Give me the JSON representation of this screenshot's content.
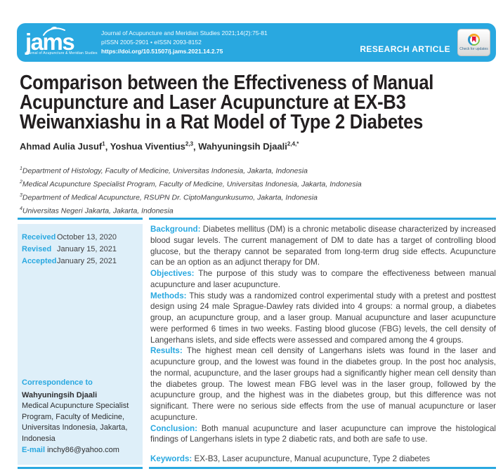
{
  "header": {
    "logo_name": "jams",
    "logo_tagline": "Journal of Acupuncture & Meridian Studies",
    "citation": "Journal of Acupuncture and Meridian Studies 2021;14(2):75-81",
    "issn": "pISSN 2005-2901 • eISSN 2093-8152",
    "doi": "https://doi.org/10.51507/j.jams.2021.14.2.75",
    "article_type": "RESEARCH ARTICLE",
    "crossmark_label": "Check for updates"
  },
  "article": {
    "title_lines": [
      "Comparison between the Effectiveness of Manual",
      "Acupuncture and Laser Acupuncture at EX-B3",
      "Weiwanxiashu in a Rat Model of Type 2 Diabetes"
    ],
    "authors": [
      {
        "name": "Ahmad Aulia Jusuf",
        "sup": "1"
      },
      {
        "name": "Yoshua Viventius",
        "sup": "2,3"
      },
      {
        "name": "Wahyuningsih Djaali",
        "sup": "2,4,*"
      }
    ],
    "affiliations": [
      {
        "sup": "1",
        "text": "Department of Histology, Faculty of Medicine, Universitas Indonesia, Jakarta, Indonesia"
      },
      {
        "sup": "2",
        "text": "Medical Acupuncture Specialist Program, Faculty of Medicine, Universitas Indonesia, Jakarta, Indonesia"
      },
      {
        "sup": "3",
        "text": "Department of Medical Acupuncture, RSUPN Dr. CiptoMangunkusumo, Jakarta, Indonesia"
      },
      {
        "sup": "4",
        "text": "Universitas Negeri Jakarta, Jakarta, Indonesia"
      }
    ]
  },
  "sidebar": {
    "history": [
      {
        "label": "Received",
        "value": "October 13, 2020"
      },
      {
        "label": "Revised",
        "value": "January 15, 2021"
      },
      {
        "label": "Accepted",
        "value": "January 25, 2021"
      }
    ],
    "correspondence": {
      "heading": "Correspondence to",
      "name": "Wahyuningsih Djaali",
      "address": "Medical Acupuncture Specialist Program, Faculty of Medicine, Universitas Indonesia, Jakarta, Indonesia",
      "email_label": "E-mail",
      "email": "inchy86@yahoo.com"
    }
  },
  "abstract": {
    "sections": [
      {
        "label": "Background:",
        "text": "Diabetes mellitus (DM) is a chronic metabolic disease characterized by increased blood sugar levels. The current management of DM to date has a target of controlling blood glucose, but the therapy cannot be separated from long-term drug side effects. Acupuncture can be an option as an adjunct therapy for DM."
      },
      {
        "label": "Objectives:",
        "text": "The purpose of this study was to compare the effectiveness between manual acupuncture and laser acupuncture."
      },
      {
        "label": "Methods:",
        "text": "This study was a randomized control experimental study with a pretest and posttest design using 24 male Sprague-Dawley rats divided into 4 groups: a normal group, a diabetes group, an acupuncture group, and a laser group. Manual acupuncture and laser acupuncture were performed 6 times in two weeks. Fasting blood glucose (FBG) levels, the cell density of Langerhans islets, and side effects were assessed and compared among the 4 groups."
      },
      {
        "label": "Results:",
        "text": "The highest mean cell density of Langerhans islets was found in the laser and acupuncture group, and the lowest was found in the diabetes group. In the post hoc analysis, the normal, acupuncture, and the laser groups had a significantly higher mean cell density than the diabetes group. The lowest mean FBG level was in the laser group, followed by the acupuncture group, and the highest was in the diabetes group, but this difference was not significant. There were no serious side effects from the use of manual acupuncture or laser acupuncture."
      },
      {
        "label": "Conclusion:",
        "text": "Both manual acupuncture and laser acupuncture can improve the histological findings of Langerhans islets in type 2 diabetic rats, and both are safe to use."
      }
    ],
    "keywords_label": "Keywords:",
    "keywords_text": "EX-B3, Laser acupuncture, Manual acupuncture, Type 2 diabetes"
  },
  "colors": {
    "accent": "#29A8E0",
    "sidebar_bg": "#DEEFF9",
    "title_text": "#231F20",
    "body_text": "#414042"
  }
}
